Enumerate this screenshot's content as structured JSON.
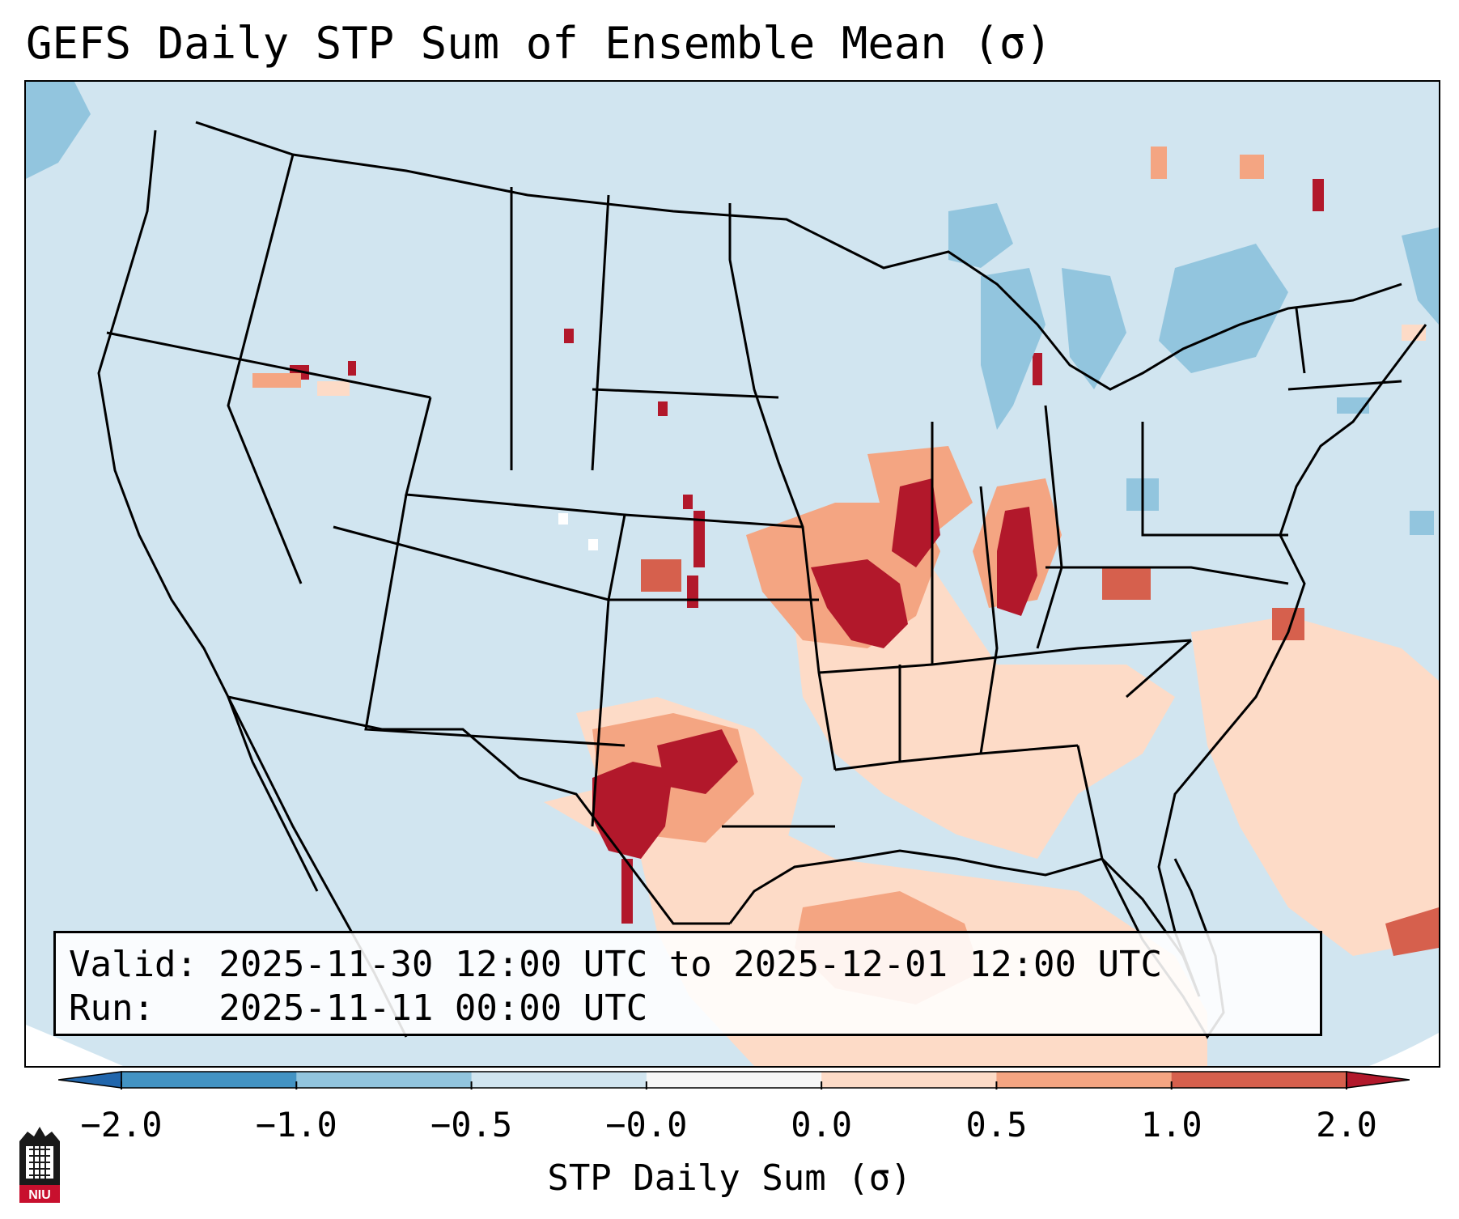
{
  "title": "GEFS Daily STP Sum of Ensemble Mean (σ)",
  "info": {
    "valid_line": "Valid: 2025-11-30 12:00 UTC to 2025-12-01 12:00 UTC",
    "run_line": "Run:   2025-11-11 00:00 UTC"
  },
  "colorbar": {
    "label": "STP Daily Sum (σ)",
    "ticks": [
      "−2.0",
      "−1.0",
      "−0.5",
      "−0.0",
      "0.0",
      "0.5",
      "1.0",
      "2.0"
    ],
    "bins": [
      {
        "color": "#4393c3"
      },
      {
        "color": "#92c5de"
      },
      {
        "color": "#d1e5f0"
      },
      {
        "color": "#f7f7f7"
      },
      {
        "color": "#fddbc7"
      },
      {
        "color": "#f4a582"
      },
      {
        "color": "#d6604d"
      }
    ],
    "extend_low_color": "#2166ac",
    "extend_high_color": "#b2182b"
  },
  "logo": {
    "text": "NIU",
    "color": "#c8102e"
  },
  "map": {
    "background_color": "#d1e5f0",
    "projection": "Lambert conformal, CONUS"
  }
}
